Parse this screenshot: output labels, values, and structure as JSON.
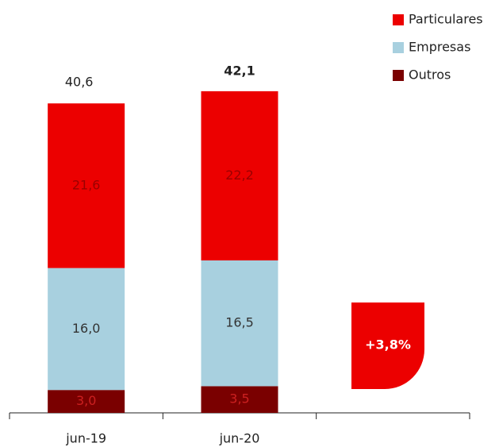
{
  "chart_data": {
    "type": "stacked_bar",
    "categories": [
      "jun-19",
      "jun-20"
    ],
    "series": [
      {
        "name": "Outros",
        "color": "#7a0000",
        "label_color": "#cc2020",
        "values": [
          3.0,
          3.5
        ],
        "value_labels": [
          "3,0",
          "3,5"
        ]
      },
      {
        "name": "Empresas",
        "color": "#a8d0df",
        "label_color": "#333333",
        "values": [
          16.0,
          16.5
        ],
        "value_labels": [
          "16,0",
          "16,5"
        ]
      },
      {
        "name": "Particulares",
        "color": "#ec0000",
        "label_color": "#9a0000",
        "values": [
          21.6,
          22.2
        ],
        "value_labels": [
          "21,6",
          "22,2"
        ]
      }
    ],
    "totals": [
      40.6,
      42.1
    ],
    "total_labels": [
      "40,6",
      "42,1"
    ],
    "annotation": "+3,8%",
    "legend_order": [
      2,
      1,
      0
    ],
    "legend": "top-right"
  }
}
